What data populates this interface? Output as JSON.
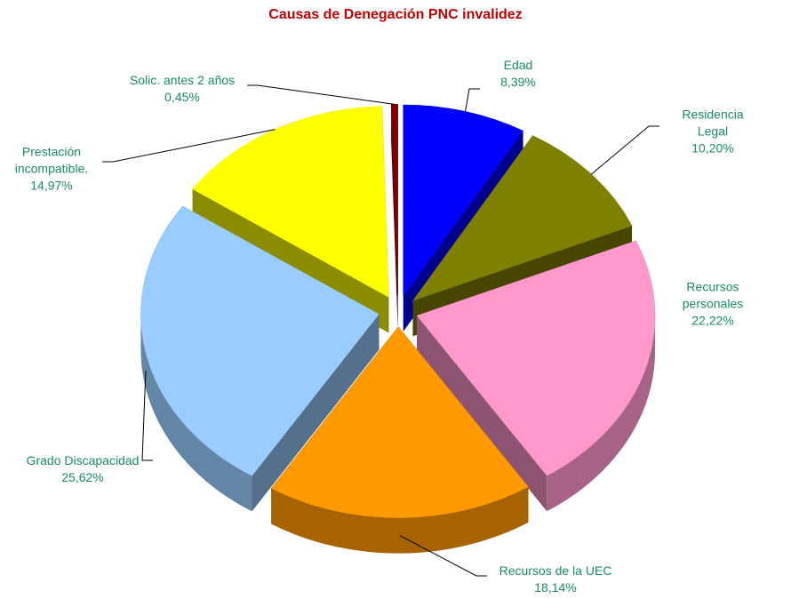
{
  "chart_data": {
    "type": "pie",
    "title": "Causas de Denegación PNC invalidez",
    "categories": [
      "Edad",
      "Residencia Legal",
      "Recursos personales",
      "Recursos de la UEC",
      "Grado Discapacidad",
      "Prestación incompatible.",
      "Solic. antes 2 años"
    ],
    "values": [
      8.39,
      10.2,
      22.22,
      18.14,
      25.62,
      14.97,
      0.45
    ],
    "value_labels": [
      "8,39%",
      "10,20%",
      "22,22%",
      "18,14%",
      "25,62%",
      "14,97%",
      "0,45%"
    ],
    "colors": [
      "#0000ff",
      "#808000",
      "#ff99cc",
      "#ff9900",
      "#99ccff",
      "#ffff00",
      "#800000"
    ]
  }
}
